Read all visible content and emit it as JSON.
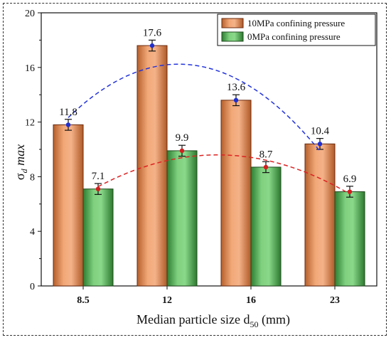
{
  "chart_data": {
    "type": "bar",
    "categories": [
      "8.5",
      "12",
      "16",
      "23"
    ],
    "series": [
      {
        "name": "10MPa confining pressure",
        "values": [
          11.8,
          17.6,
          13.6,
          10.4
        ],
        "errors": [
          0.4,
          0.4,
          0.4,
          0.4
        ],
        "color": "#e8925b",
        "edge": "#6b2a0e",
        "marker_color": "#1f2fd0"
      },
      {
        "name": "0MPa confining pressure",
        "values": [
          7.1,
          9.9,
          8.7,
          6.9
        ],
        "errors": [
          0.4,
          0.4,
          0.4,
          0.4
        ],
        "color": "#5fb85f",
        "edge": "#1f4a1f",
        "marker_color": "#d11f1f"
      }
    ],
    "data_labels": [
      [
        "11.8",
        "17.6",
        "13.6",
        "10.4"
      ],
      [
        "7.1",
        "9.9",
        "8.7",
        "6.9"
      ]
    ],
    "trendlines": [
      {
        "series": 0,
        "color": "#2233dd",
        "style": "dashed",
        "fit": "quadratic"
      },
      {
        "series": 1,
        "color": "#dd2222",
        "style": "dashed",
        "fit": "quadratic"
      }
    ],
    "xlabel_main": "Median particle size d",
    "xlabel_sub": "50",
    "xlabel_suffix": " (mm)",
    "ylabel_main": "σ",
    "ylabel_sub": "d",
    "ylabel_suffix": " max",
    "ylim": [
      0,
      20
    ],
    "yticks": [
      "0",
      "4",
      "8",
      "12",
      "16",
      "20"
    ],
    "ytick_values": [
      0,
      4,
      8,
      12,
      16,
      20
    ],
    "grid": false,
    "legend_position": "top-right"
  }
}
